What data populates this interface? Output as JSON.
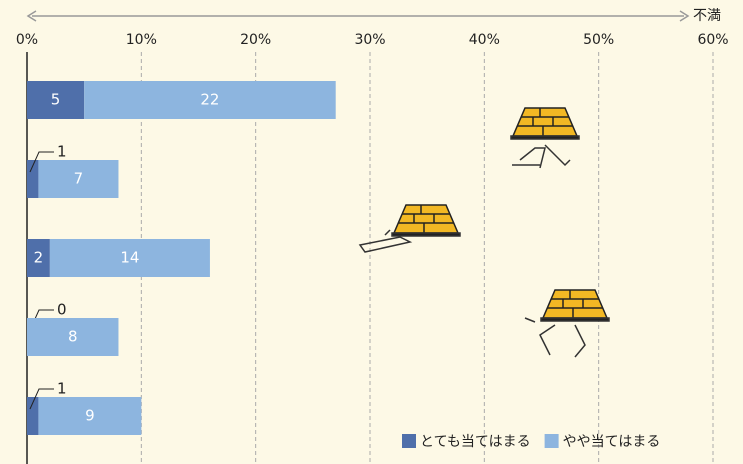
{
  "chart_data": {
    "type": "stacked-bar-horizontal",
    "axis_label": "不満",
    "categories": [
      null,
      null,
      null,
      null,
      null
    ],
    "series": [
      {
        "name": "とても当てはまる",
        "color": "#4f6faa",
        "values": [
          5,
          1,
          2,
          0,
          1
        ]
      },
      {
        "name": "やや当てはまる",
        "color": "#8db5df",
        "values": [
          22,
          7,
          14,
          8,
          9
        ]
      }
    ],
    "xlim": [
      0,
      60
    ],
    "xticks": [
      {
        "value": 0,
        "label": "0%"
      },
      {
        "value": 10,
        "label": "10%"
      },
      {
        "value": 20,
        "label": "20%"
      },
      {
        "value": 30,
        "label": "30%"
      },
      {
        "value": 40,
        "label": "40%"
      },
      {
        "value": 50,
        "label": "50%"
      },
      {
        "value": 60,
        "label": "60%"
      }
    ],
    "grid": true
  }
}
